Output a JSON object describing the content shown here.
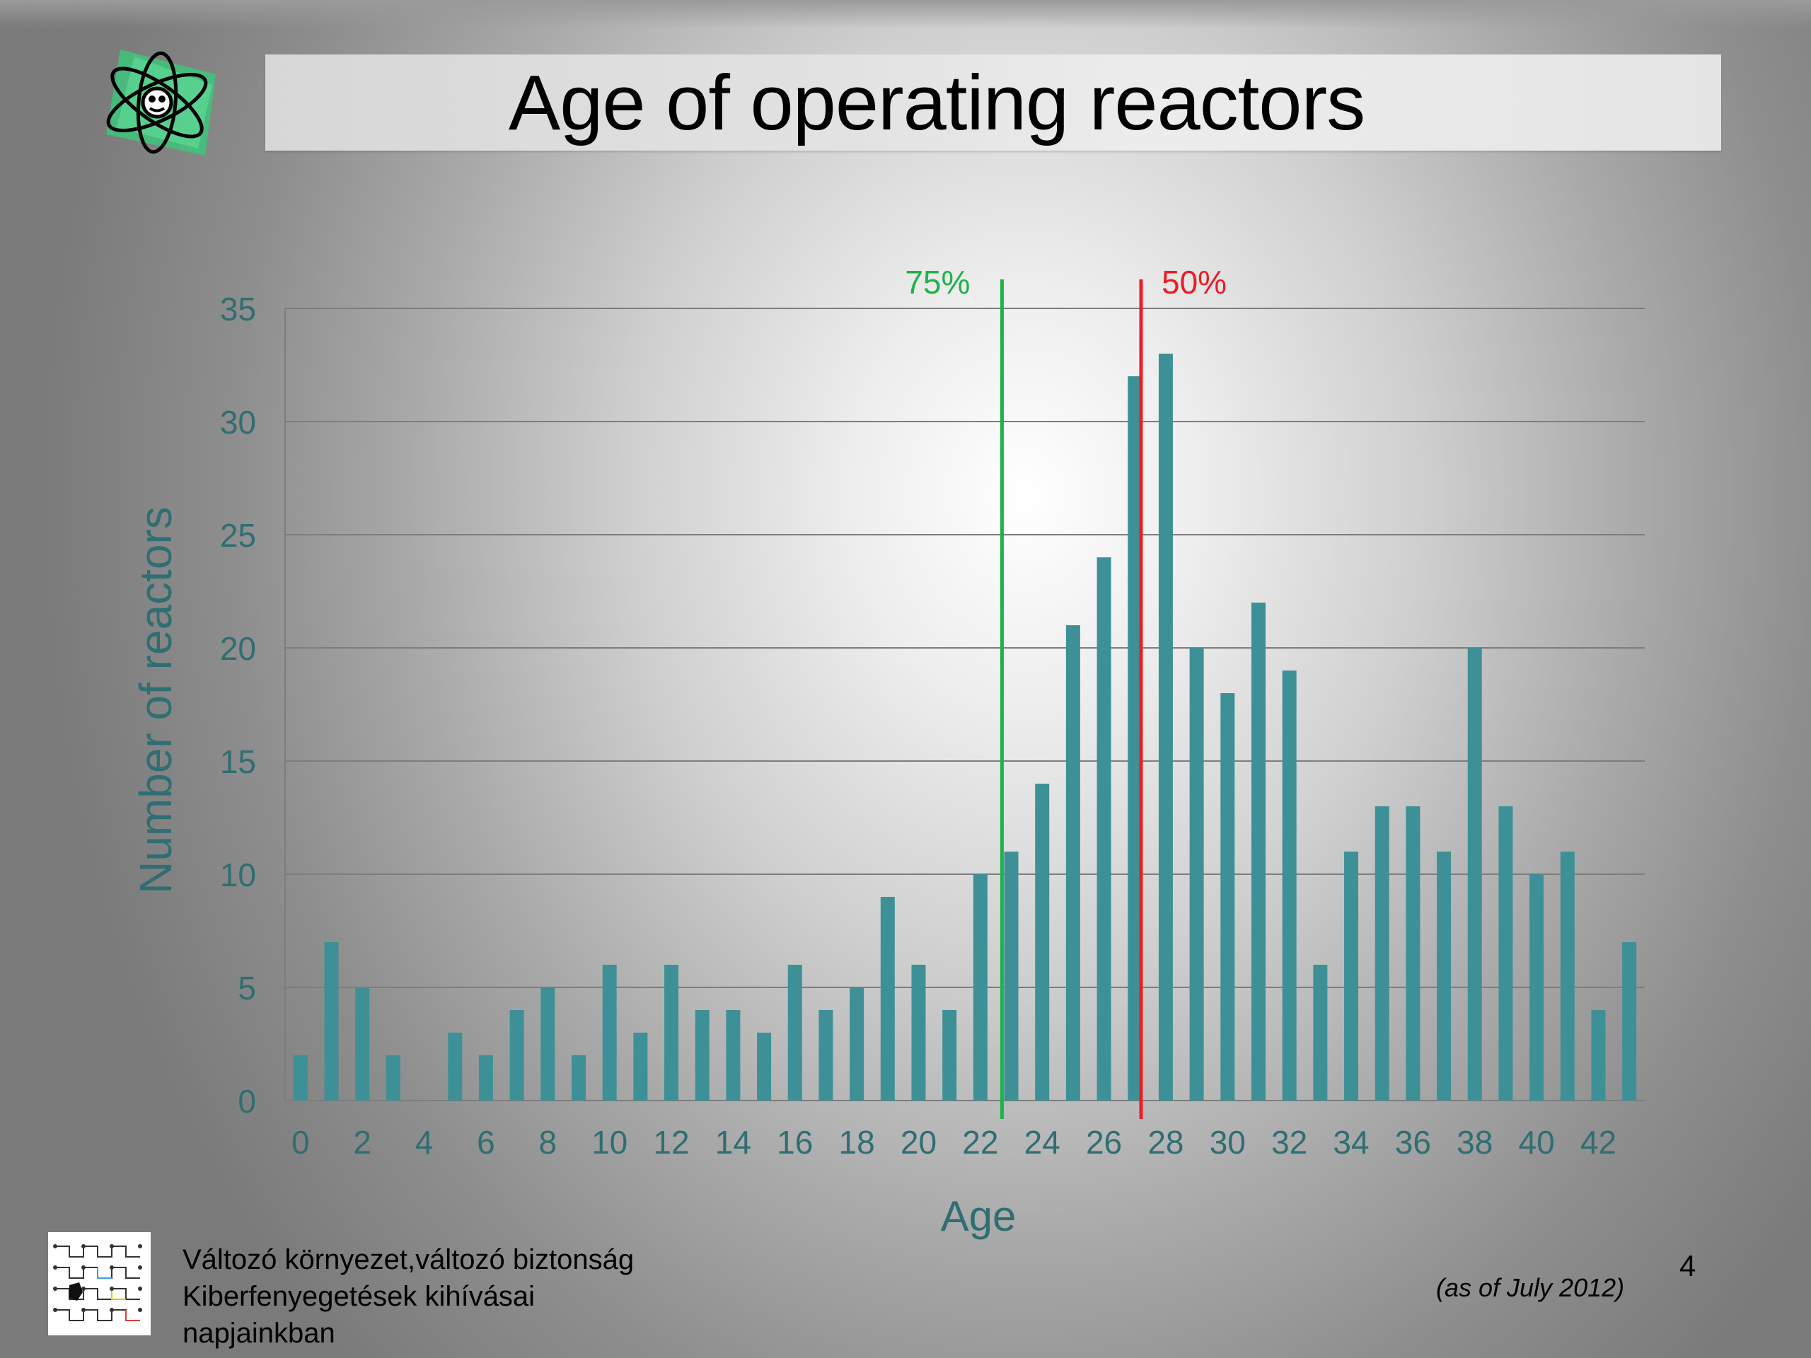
{
  "slide": {
    "title": "Age of operating reactors",
    "page_number": "4",
    "as_of_note": "(as of July 2012)",
    "footer_lines": [
      "Változó környezet,változó biztonság",
      "Kiberfenyegetések kihívásai",
      "napjainkban"
    ]
  },
  "colors": {
    "bar": "#3d9196",
    "axis_text": "#2f6e72",
    "gridline": "#7d7d7d",
    "marker_75": "#1fb24a",
    "marker_50": "#ee1c25"
  },
  "icons": {
    "header_logo": "atom-logo-icon",
    "footer_logo": "network-diagram-icon"
  },
  "chart_data": {
    "type": "bar",
    "title": "Age of operating reactors",
    "xlabel": "Age",
    "ylabel": "Number of reactors",
    "categories": [
      0,
      1,
      2,
      3,
      4,
      5,
      6,
      7,
      8,
      9,
      10,
      11,
      12,
      13,
      14,
      15,
      16,
      17,
      18,
      19,
      20,
      21,
      22,
      23,
      24,
      25,
      26,
      27,
      28,
      29,
      30,
      31,
      32,
      33,
      34,
      35,
      36,
      37,
      38,
      39,
      40,
      41,
      42,
      43
    ],
    "values": [
      2,
      7,
      5,
      2,
      0,
      3,
      2,
      4,
      5,
      2,
      6,
      3,
      6,
      4,
      4,
      3,
      6,
      4,
      5,
      9,
      6,
      4,
      10,
      11,
      14,
      21,
      24,
      32,
      33,
      20,
      18,
      22,
      19,
      6,
      11,
      13,
      13,
      11,
      20,
      13,
      10,
      11,
      4,
      7
    ],
    "x_tick_labels": [
      "0",
      "2",
      "4",
      "6",
      "8",
      "10",
      "12",
      "14",
      "16",
      "18",
      "20",
      "22",
      "24",
      "26",
      "28",
      "30",
      "32",
      "34",
      "36",
      "38",
      "40",
      "42"
    ],
    "y_tick_labels": [
      "0",
      "5",
      "10",
      "15",
      "20",
      "25",
      "30",
      "35"
    ],
    "ylim": [
      0,
      35
    ],
    "grid": true,
    "reference_lines": [
      {
        "label": "75%",
        "x": 22.7,
        "color": "#1fb24a"
      },
      {
        "label": "50%",
        "x": 27.2,
        "color": "#ee1c25"
      }
    ]
  }
}
